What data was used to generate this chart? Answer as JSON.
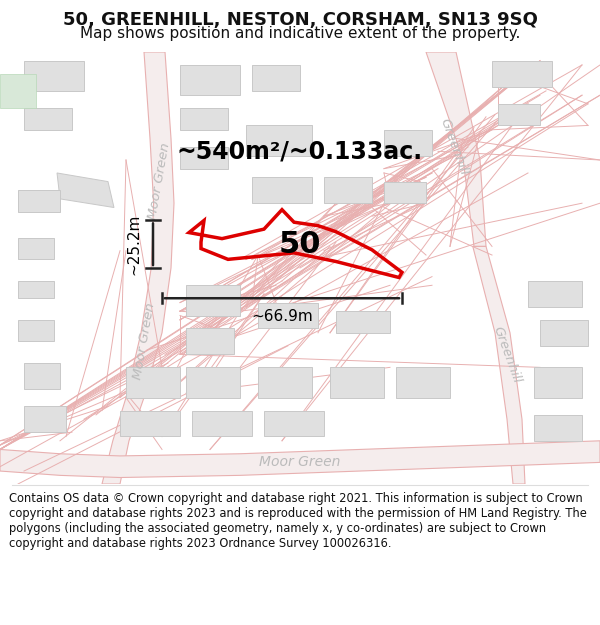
{
  "title": "50, GREENHILL, NESTON, CORSHAM, SN13 9SQ",
  "subtitle": "Map shows position and indicative extent of the property.",
  "footer": "Contains OS data © Crown copyright and database right 2021. This information is subject to Crown copyright and database rights 2023 and is reproduced with the permission of HM Land Registry. The polygons (including the associated geometry, namely x, y co-ordinates) are subject to Crown copyright and database rights 2023 Ordnance Survey 100026316.",
  "area_label": "~540m²/~0.133ac.",
  "width_label": "~66.9m",
  "height_label": "~25.2m",
  "property_number": "50",
  "bg_color": "#ffffff",
  "map_bg": "#ffffff",
  "road_fill": "#f2e8e8",
  "road_line": "#e8b0b0",
  "build_fill": "#e0e0e0",
  "build_line": "#c8c8c8",
  "prop_color": "#dd0000",
  "dim_color": "#222222",
  "street_color": "#bbbbbb",
  "title_fs": 13,
  "subtitle_fs": 11,
  "footer_fs": 8.3,
  "area_fs": 17,
  "number_fs": 22,
  "dim_fs": 11,
  "street_fs": 9.5
}
